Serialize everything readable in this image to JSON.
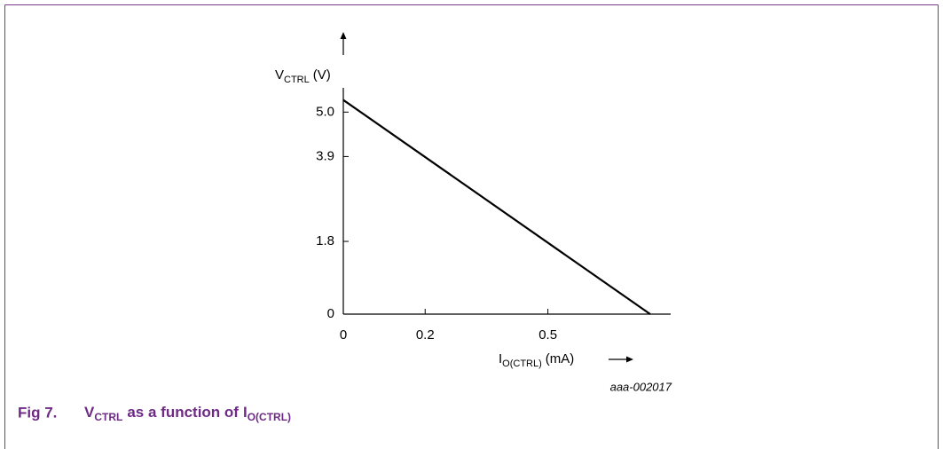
{
  "chart_data": {
    "type": "line",
    "y_label": {
      "main": "V",
      "sub": "CTRL",
      "unit": "(V)"
    },
    "x_label": {
      "main": "I",
      "sub": "O(CTRL)",
      "unit": "(mA)"
    },
    "code": "aaa-002017",
    "caption": {
      "number": "Fig 7.",
      "a": "V",
      "a_sub": "CTRL",
      "mid": "as a function of",
      "b": "I",
      "b_sub": "O(CTRL)"
    },
    "xlim": [
      0,
      0.8
    ],
    "ylim": [
      0,
      5.6
    ],
    "xticks": [
      0,
      0.2,
      0.5
    ],
    "yticks": [
      0,
      1.8,
      3.9,
      {
        "value": 5,
        "label": "5.0"
      }
    ],
    "series": [
      {
        "color": "#000000",
        "x": [
          0,
          0.75
        ],
        "values": [
          5.3,
          0
        ]
      }
    ]
  }
}
